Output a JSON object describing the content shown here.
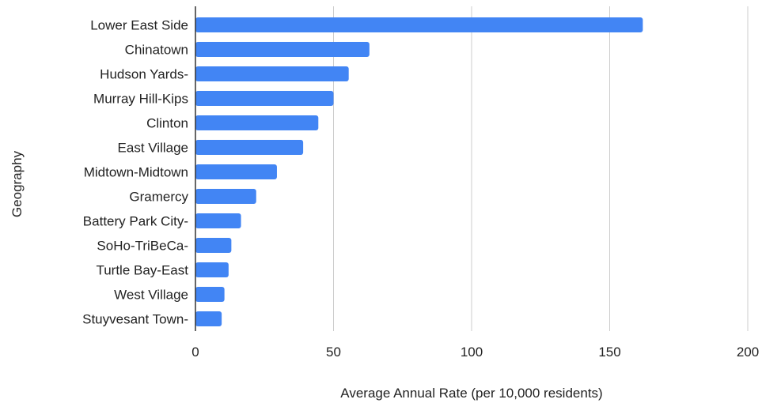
{
  "chart_data": {
    "type": "bar",
    "orientation": "horizontal",
    "categories": [
      "Lower East Side",
      "Chinatown",
      "Hudson Yards-",
      "Murray Hill-Kips",
      "Clinton",
      "East Village",
      "Midtown-Midtown",
      "Gramercy",
      "Battery Park City-",
      "SoHo-TriBeCa-",
      "Turtle Bay-East",
      "West Village",
      "Stuyvesant Town-"
    ],
    "values": [
      162,
      63,
      55.5,
      50,
      44.5,
      39,
      29.5,
      22,
      16.5,
      13,
      12,
      10.5,
      9.5
    ],
    "xlabel": "Average Annual Rate (per 10,000 residents)",
    "ylabel": "Geography",
    "xlim": [
      0,
      200
    ],
    "xticks": [
      0,
      50,
      100,
      150,
      200
    ],
    "grid": true,
    "legend": "none",
    "bar_color": "#4285f4"
  }
}
